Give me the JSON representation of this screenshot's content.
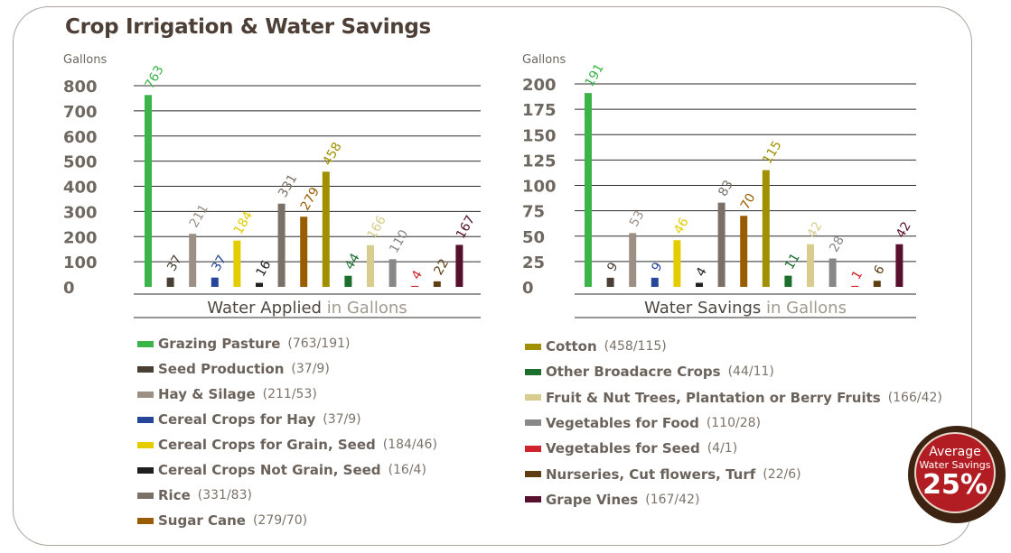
{
  "title": "Crop Irrigation & Water Savings",
  "chart_data": [
    {
      "type": "bar",
      "ylabel": "Gallons",
      "xlabel_main": "Water Applied",
      "xlabel_suffix": "in Gallons",
      "ylim": [
        0,
        800
      ],
      "yticks": [
        0,
        100,
        200,
        300,
        400,
        500,
        600,
        700,
        800
      ],
      "categories": [
        "Grazing Pasture",
        "Seed Production",
        "Hay & Silage",
        "Cereal Crops for Hay",
        "Cereal Crops for Grain, Seed",
        "Cereal Crops Not Grain, Seed",
        "Rice",
        "Sugar Cane",
        "Cotton",
        "Other Broadacre Crops",
        "Fruit & Nut Trees, Plantation or Berry Fruits",
        "Vegetables for Food",
        "Vegetables for Seed",
        "Nurseries, Cut flowers, Turf",
        "Grape Vines"
      ],
      "values": [
        763,
        37,
        211,
        37,
        184,
        16,
        331,
        279,
        458,
        44,
        166,
        110,
        4,
        22,
        167
      ],
      "grid": true
    },
    {
      "type": "bar",
      "ylabel": "Gallons",
      "xlabel_main": "Water Savings",
      "xlabel_suffix": "in Gallons",
      "ylim": [
        0,
        200
      ],
      "yticks": [
        0,
        25,
        50,
        75,
        100,
        125,
        150,
        175,
        200
      ],
      "categories": [
        "Grazing Pasture",
        "Seed Production",
        "Hay & Silage",
        "Cereal Crops for Hay",
        "Cereal Crops for Grain, Seed",
        "Cereal Crops Not Grain, Seed",
        "Rice",
        "Sugar Cane",
        "Cotton",
        "Other Broadacre Crops",
        "Fruit & Nut Trees, Plantation or Berry Fruits",
        "Vegetables for Food",
        "Vegetables for Seed",
        "Nurseries, Cut flowers, Turf",
        "Grape Vines"
      ],
      "values": [
        191,
        9,
        53,
        9,
        46,
        4,
        83,
        70,
        115,
        11,
        42,
        28,
        1,
        6,
        42
      ],
      "grid": true
    }
  ],
  "colors": [
    "#3bb54a",
    "#4a3f35",
    "#9c8f84",
    "#26469a",
    "#e3cd00",
    "#1f1f1f",
    "#7a7067",
    "#9a5c00",
    "#a09000",
    "#1b6e2c",
    "#d8cc8e",
    "#888889",
    "#d0232b",
    "#5d3e10",
    "#56102d"
  ],
  "legend": {
    "left": [
      {
        "name": "Grazing Pasture",
        "values": "(763/191)"
      },
      {
        "name": "Seed Production",
        "values": "(37/9)"
      },
      {
        "name": "Hay & Silage",
        "values": "(211/53)"
      },
      {
        "name": "Cereal Crops for Hay",
        "values": "(37/9)"
      },
      {
        "name": "Cereal Crops for Grain, Seed",
        "values": "(184/46)"
      },
      {
        "name": "Cereal Crops Not Grain, Seed",
        "values": "(16/4)"
      },
      {
        "name": "Rice",
        "values": "(331/83)"
      },
      {
        "name": "Sugar Cane",
        "values": "(279/70)"
      }
    ],
    "right": [
      {
        "name": "Cotton",
        "values": "(458/115)"
      },
      {
        "name": "Other Broadacre Crops",
        "values": "(44/11)"
      },
      {
        "name": "Fruit & Nut Trees, Plantation or Berry Fruits",
        "values": "(166/42)"
      },
      {
        "name": "Vegetables for Food",
        "values": "(110/28)"
      },
      {
        "name": "Vegetables for Seed",
        "values": "(4/1)"
      },
      {
        "name": "Nurseries, Cut flowers, Turf",
        "values": "(22/6)"
      },
      {
        "name": "Grape Vines",
        "values": "(167/42)"
      }
    ]
  },
  "badge": {
    "line1": "Average",
    "line2": "Water Savings",
    "value": "25%"
  }
}
